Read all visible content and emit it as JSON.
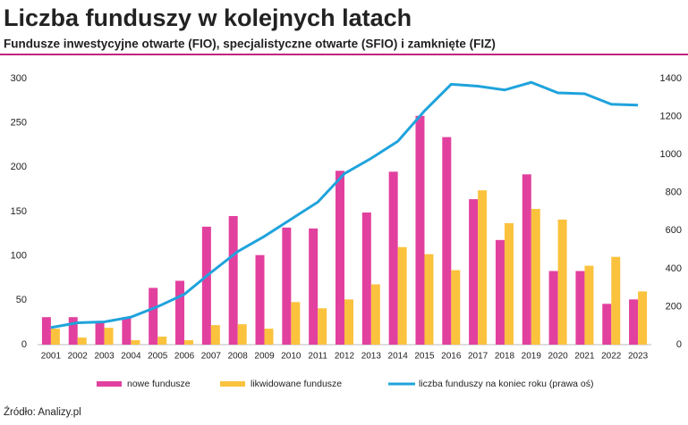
{
  "chart_data": {
    "type": "bar-line",
    "title": "Liczba funduszy w kolejnych latach",
    "subtitle": "Fundusze inwestycyjne otwarte (FIO), specjalistyczne otwarte (SFIO) i zamknięte (FIZ)",
    "source": "Źródło: Analizy.pl",
    "categories": [
      "2001",
      "2002",
      "2003",
      "2004",
      "2005",
      "2006",
      "2007",
      "2008",
      "2009",
      "2010",
      "2011",
      "2012",
      "2013",
      "2014",
      "2015",
      "2016",
      "2017",
      "2018",
      "2019",
      "2020",
      "2021",
      "2022",
      "2023"
    ],
    "series": [
      {
        "name": "nowe fundusze",
        "color": "#e2409e",
        "type": "bar",
        "values": [
          31,
          31,
          26,
          31,
          64,
          72,
          133,
          145,
          101,
          132,
          131,
          196,
          149,
          195,
          258,
          234,
          164,
          118,
          192,
          83,
          83,
          46,
          51
        ]
      },
      {
        "name": "likwidowane fundusze",
        "color": "#fbc23e",
        "type": "bar",
        "values": [
          18,
          8,
          19,
          5,
          9,
          5,
          22,
          23,
          18,
          48,
          41,
          51,
          68,
          110,
          102,
          84,
          174,
          137,
          153,
          141,
          89,
          99,
          60
        ]
      },
      {
        "name": "liczba funduszy na koniec roku (prawa oś)",
        "color": "#1fa3dc",
        "type": "line",
        "axis": "y2",
        "values": [
          90,
          115,
          120,
          145,
          200,
          265,
          380,
          490,
          570,
          660,
          750,
          900,
          980,
          1070,
          1230,
          1370,
          1360,
          1340,
          1380,
          1325,
          1320,
          1265,
          1260
        ]
      }
    ],
    "ylim": [
      0,
      300
    ],
    "yticks": [
      0,
      50,
      100,
      150,
      200,
      250,
      300
    ],
    "y2lim": [
      0,
      1400
    ],
    "y2ticks": [
      0,
      200,
      400,
      600,
      800,
      1000,
      1200,
      1400
    ],
    "grid": false,
    "legend": "bottom"
  }
}
